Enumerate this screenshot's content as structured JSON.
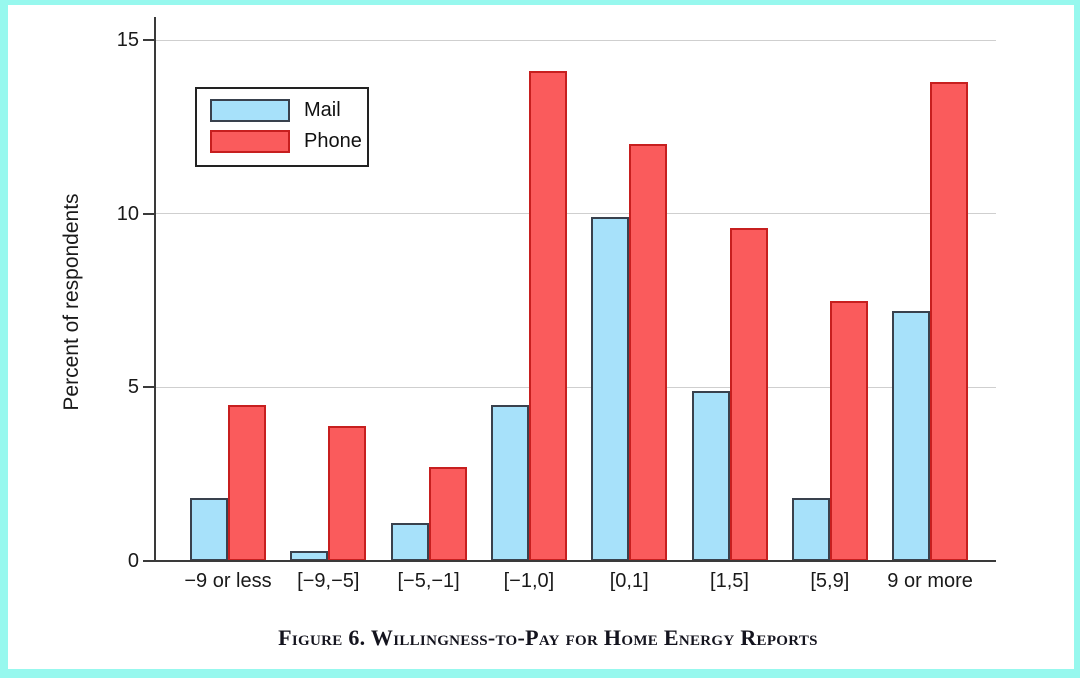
{
  "figure": {
    "caption": "Figure 6. Willingness-to-Pay for Home Energy Reports"
  },
  "chart_data": {
    "type": "bar",
    "title": "",
    "xlabel": "",
    "ylabel": "Percent of respondents",
    "categories": [
      "−9 or less",
      "[−9,−5]",
      "[−5,−1]",
      "[−1,0]",
      "[0,1]",
      "[1,5]",
      "[5,9]",
      "9 or more"
    ],
    "series": [
      {
        "name": "Mail",
        "fill": "#a7e1fa",
        "border": "#39414d",
        "values": [
          1.8,
          0.3,
          1.1,
          4.5,
          9.9,
          4.9,
          1.8,
          7.2
        ]
      },
      {
        "name": "Phone",
        "fill": "#fa5b5c",
        "border": "#c71f1f",
        "values": [
          4.5,
          3.9,
          2.7,
          14.1,
          12.0,
          9.6,
          7.5,
          13.8
        ]
      }
    ],
    "ylim": [
      0,
      15
    ],
    "yticks": [
      0,
      5,
      10,
      15
    ],
    "grid": true,
    "legend_position": "upper-left"
  },
  "colors": {
    "frame": "#97f8ee",
    "grid": "#cfcfcf",
    "axis": "#3a3a3a"
  }
}
